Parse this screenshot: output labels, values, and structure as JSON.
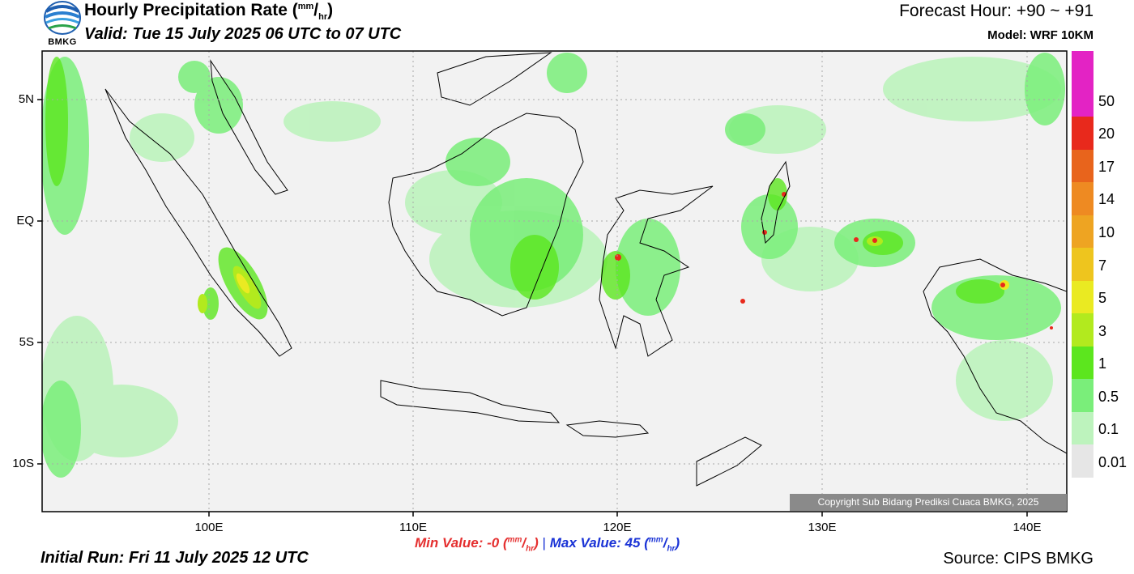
{
  "header": {
    "title_main": "Hourly Precipitation Rate (",
    "title_unit_num": "mm",
    "title_slash": "/",
    "title_unit_den": "hr",
    "title_close": ")",
    "valid": "Valid: Tue 15 July 2025 06 UTC to 07 UTC",
    "forecast_hour": "Forecast Hour: +90 ~ +91",
    "model": "Model: WRF 10KM"
  },
  "logo": {
    "text": "BMKG",
    "icon": "bmkg-logo-icon"
  },
  "map": {
    "x_ticks": [
      "100E",
      "110E",
      "120E",
      "130E",
      "140E"
    ],
    "y_ticks": [
      "5N",
      "EQ",
      "5S",
      "10S"
    ],
    "copyright": "Copyright Sub Bidang Prediksi Cuaca BMKG, 2025"
  },
  "legend": {
    "labels": [
      "50",
      "20",
      "17",
      "14",
      "10",
      "7",
      "5",
      "3",
      "1",
      "0.5",
      "0.1",
      "0.01"
    ],
    "colors": [
      "#e323c4",
      "#e8291c",
      "#e8641c",
      "#ee8a22",
      "#eea422",
      "#eec51e",
      "#eaea22",
      "#b2ea1e",
      "#5ce61e",
      "#7aee7a",
      "#bdf3bd",
      "#e6e6e6"
    ]
  },
  "stats": {
    "min_label": "Min Value:  -0 (",
    "max_label": "Max Value:  45 (",
    "unit_num": "mm",
    "unit_den": "hr",
    "close": ")",
    "separator": "|"
  },
  "footer": {
    "initial_run": "Initial Run: Fri 11 July 2025 12 UTC",
    "source": "Source: CIPS BMKG"
  }
}
